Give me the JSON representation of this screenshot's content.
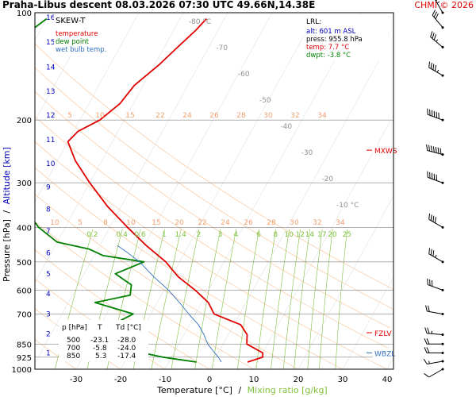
{
  "header": {
    "title": "Praha-Libus   descent   08.03.2026 07:30 UTC   49.66N,14.38E",
    "copyright": "CHMI © 2026"
  },
  "legend": {
    "type_label": "SKEW-T",
    "temperature": "temperature",
    "dew_point": "dew point",
    "wet_bulb": "wet bulb temp."
  },
  "lrl": {
    "title": "LRL:",
    "alt": "alt: 601 m ASL",
    "press": "press: 955.8 hPa",
    "temp": "temp: 7.7 °C",
    "dwpt": "dwpt: -3.8 °C"
  },
  "levels_table": {
    "headers": [
      "p [hPa]",
      "T",
      "Td [°C]"
    ],
    "rows": [
      [
        "500",
        "-23.1",
        "-28.0"
      ],
      [
        "700",
        "-5.8",
        "-24.0"
      ],
      [
        "850",
        "5.3",
        "-17.4"
      ]
    ]
  },
  "axes": {
    "ylabel_pressure": "Pressure [hPa]",
    "ylabel_sep": "/",
    "ylabel_altitude": "Altitude [km]",
    "xlabel_temp": "Temperature [°C]",
    "xlabel_sep": "/",
    "xlabel_mix": "Mixing ratio [g/kg]"
  },
  "markers": {
    "mxws": "MXWS",
    "fzlv": "FZLV",
    "wbzl": "WBZL"
  },
  "adiabat_labels": [
    "-80 °C",
    "-70",
    "-60",
    "-50",
    "-40",
    "-30",
    "-20",
    "-10 °C"
  ],
  "mixing_ratio_labels": [
    "0.2",
    "0.4",
    "0.6",
    "1",
    "1.4",
    "2",
    "3",
    "4",
    "6",
    "8",
    "10",
    "12",
    "14",
    "17",
    "20",
    "25"
  ],
  "colors": {
    "temperature": "#e00000",
    "dew_point": "#008000",
    "wet_bulb": "#3070c0",
    "dry_adiabat": "#f8c8a0",
    "moist_adiabat_label": "#f0a070",
    "mixing_ratio": "#80c040",
    "isobar": "#808080",
    "copyright": "#e00000",
    "altitude_axis": "#0000c0"
  },
  "chart_data": {
    "type": "line",
    "subtype": "skew-t",
    "xlim": [
      -35,
      47
    ],
    "ylim_hpa": [
      1000,
      100
    ],
    "x_ticks": [
      "-30",
      "-20",
      "-10",
      "0",
      "10",
      "20",
      "30",
      "40"
    ],
    "x_tick_values": [
      -30,
      -20,
      -10,
      0,
      10,
      20,
      30,
      40
    ],
    "pressure_ticks": [
      "100",
      "200",
      "300",
      "400",
      "500",
      "600",
      "700",
      "850",
      "925",
      "1000"
    ],
    "pressure_tick_values": [
      100,
      200,
      300,
      400,
      500,
      600,
      700,
      850,
      925,
      1000
    ],
    "altitude_ticks_km": [
      "1",
      "2",
      "3",
      "4",
      "5",
      "6",
      "7",
      "8",
      "9",
      "10",
      "11",
      "12",
      "13",
      "14",
      "15",
      "16"
    ],
    "series": [
      {
        "name": "temperature",
        "points": [
          [
            955,
            7.7
          ],
          [
            925,
            10.5
          ],
          [
            900,
            10.0
          ],
          [
            850,
            5.3
          ],
          [
            800,
            4.2
          ],
          [
            750,
            1.5
          ],
          [
            700,
            -5.8
          ],
          [
            650,
            -8.5
          ],
          [
            600,
            -13.0
          ],
          [
            550,
            -18.5
          ],
          [
            500,
            -23.1
          ],
          [
            450,
            -29.5
          ],
          [
            400,
            -36.0
          ],
          [
            350,
            -43.0
          ],
          [
            300,
            -50.0
          ],
          [
            260,
            -56.0
          ],
          [
            230,
            -60.0
          ],
          [
            215,
            -59.0
          ],
          [
            200,
            -55.5
          ],
          [
            180,
            -53.0
          ],
          [
            160,
            -52.0
          ],
          [
            140,
            -49.0
          ],
          [
            125,
            -47.0
          ],
          [
            112,
            -45.0
          ],
          [
            104,
            -44.0
          ]
        ]
      },
      {
        "name": "dew point",
        "points": [
          [
            955,
            -3.8
          ],
          [
            925,
            -12.0
          ],
          [
            900,
            -17.0
          ],
          [
            850,
            -17.4
          ],
          [
            820,
            -25.0
          ],
          [
            790,
            -22.0
          ],
          [
            760,
            -30.0
          ],
          [
            730,
            -26.0
          ],
          [
            700,
            -24.0
          ],
          [
            650,
            -34.0
          ],
          [
            620,
            -27.0
          ],
          [
            580,
            -28.0
          ],
          [
            540,
            -33.0
          ],
          [
            500,
            -28.0
          ],
          [
            480,
            -38.0
          ],
          [
            460,
            -42.0
          ],
          [
            440,
            -50.0
          ],
          [
            400,
            -56.0
          ],
          [
            350,
            -62.0
          ],
          [
            300,
            -68.0
          ],
          [
            260,
            -74.0
          ],
          [
            230,
            -78.0
          ],
          [
            200,
            -81.0
          ],
          [
            180,
            -82.0
          ],
          [
            160,
            -85.0
          ],
          [
            140,
            -86.0
          ],
          [
            125,
            -85.0
          ],
          [
            112,
            -82.0
          ],
          [
            104,
            -80.0
          ]
        ]
      },
      {
        "name": "wet bulb temp.",
        "points": [
          [
            955,
            1.8
          ],
          [
            925,
            0.5
          ],
          [
            900,
            -0.8
          ],
          [
            850,
            -3.5
          ],
          [
            800,
            -5.5
          ],
          [
            750,
            -8.0
          ],
          [
            700,
            -11.5
          ],
          [
            650,
            -15.0
          ],
          [
            600,
            -19.0
          ],
          [
            550,
            -24.0
          ],
          [
            500,
            -29.0
          ],
          [
            470,
            -33.0
          ],
          [
            450,
            -36.0
          ]
        ]
      }
    ],
    "dry_adiabats_C": [
      -80,
      -70,
      -60,
      -50,
      -40,
      -30,
      -20,
      -10,
      0,
      10,
      20,
      30,
      40,
      50,
      60,
      70,
      80
    ],
    "mixing_ratios_gkg": [
      0.2,
      0.4,
      0.6,
      1,
      1.4,
      2,
      3,
      4,
      6,
      8,
      10,
      12,
      14,
      17,
      20,
      25
    ],
    "markers": [
      {
        "label": "MXWS",
        "p": 243
      },
      {
        "label": "FZLV",
        "p": 790
      },
      {
        "label": "WBZL",
        "p": 900
      }
    ],
    "wind_barbs": [
      {
        "p": 1000,
        "dir": 240,
        "kt": 10
      },
      {
        "p": 950,
        "dir": 260,
        "kt": 15
      },
      {
        "p": 900,
        "dir": 270,
        "kt": 20
      },
      {
        "p": 850,
        "dir": 270,
        "kt": 20
      },
      {
        "p": 800,
        "dir": 275,
        "kt": 25
      },
      {
        "p": 700,
        "dir": 280,
        "kt": 20
      },
      {
        "p": 600,
        "dir": 290,
        "kt": 30
      },
      {
        "p": 500,
        "dir": 300,
        "kt": 35
      },
      {
        "p": 400,
        "dir": 300,
        "kt": 40
      },
      {
        "p": 300,
        "dir": 290,
        "kt": 50
      },
      {
        "p": 250,
        "dir": 285,
        "kt": 70
      },
      {
        "p": 200,
        "dir": 290,
        "kt": 60
      },
      {
        "p": 150,
        "dir": 300,
        "kt": 45
      },
      {
        "p": 125,
        "dir": 310,
        "kt": 35
      },
      {
        "p": 110,
        "dir": 320,
        "kt": 30
      },
      {
        "p": 100,
        "dir": 330,
        "kt": 25
      }
    ]
  }
}
